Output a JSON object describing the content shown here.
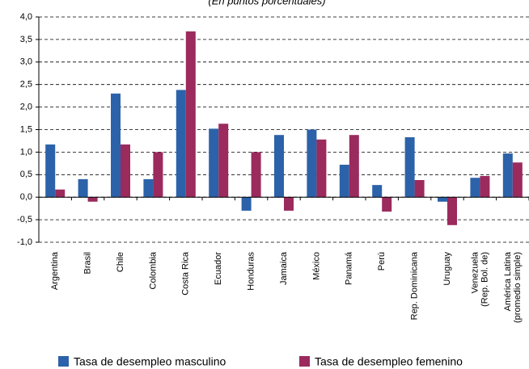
{
  "chart_data": {
    "type": "bar",
    "subtitle": "(En puntos porcentuales)",
    "categories": [
      "Argentina",
      "Brasil",
      "Chile",
      "Colombia",
      "Costa Rica",
      "Ecuador",
      "Honduras",
      "Jamaica",
      "México",
      "Panamá",
      "Perú",
      "Rep. Dominicana",
      "Uruguay",
      "Venezuela (Rep. Bol. de)",
      "América Latina (promedio simple)"
    ],
    "series": [
      {
        "name": "Tasa de desempleo masculino",
        "color": "#2c62a9",
        "values": [
          1.17,
          0.4,
          2.3,
          0.4,
          2.38,
          1.52,
          -0.3,
          1.38,
          1.5,
          0.72,
          0.27,
          1.33,
          -0.1,
          0.43,
          0.97
        ]
      },
      {
        "name": "Tasa de desempleo femenino",
        "color": "#9b2a5d",
        "values": [
          0.17,
          -0.1,
          1.17,
          1.0,
          3.68,
          1.63,
          1.0,
          -0.3,
          1.28,
          1.38,
          -0.32,
          0.38,
          -0.62,
          0.47,
          0.77
        ]
      }
    ],
    "ylim": [
      -1,
      4
    ],
    "yticks": [
      {
        "value": -1,
        "label": "-1,0"
      },
      {
        "value": -0.5,
        "label": "-0,5"
      },
      {
        "value": 0,
        "label": "0,0"
      },
      {
        "value": 0.5,
        "label": "0,5"
      },
      {
        "value": 1,
        "label": "1,0"
      },
      {
        "value": 1.5,
        "label": "1,5"
      },
      {
        "value": 2,
        "label": "2,0"
      },
      {
        "value": 2.5,
        "label": "2,5"
      },
      {
        "value": 3,
        "label": "3,0"
      },
      {
        "value": 3.5,
        "label": "3,5"
      },
      {
        "value": 4,
        "label": "4,0"
      }
    ],
    "grid": true
  }
}
